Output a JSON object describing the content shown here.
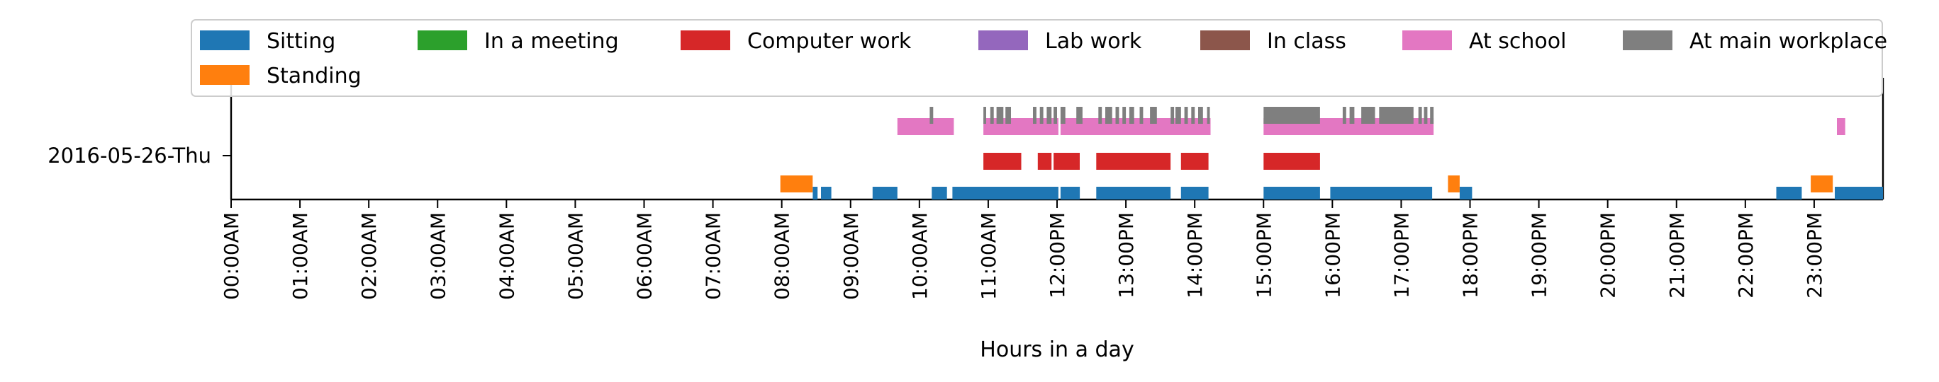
{
  "chart_data": {
    "type": "timeline",
    "xlabel": "Hours in a day",
    "xlim": [
      0,
      24
    ],
    "x_ticks": [
      {
        "value": 0,
        "label": "00:00AM"
      },
      {
        "value": 1,
        "label": "01:00AM"
      },
      {
        "value": 2,
        "label": "02:00AM"
      },
      {
        "value": 3,
        "label": "03:00AM"
      },
      {
        "value": 4,
        "label": "04:00AM"
      },
      {
        "value": 5,
        "label": "05:00AM"
      },
      {
        "value": 6,
        "label": "06:00AM"
      },
      {
        "value": 7,
        "label": "07:00AM"
      },
      {
        "value": 8,
        "label": "08:00AM"
      },
      {
        "value": 9,
        "label": "09:00AM"
      },
      {
        "value": 10,
        "label": "10:00AM"
      },
      {
        "value": 11,
        "label": "11:00AM"
      },
      {
        "value": 12,
        "label": "12:00PM"
      },
      {
        "value": 13,
        "label": "13:00PM"
      },
      {
        "value": 14,
        "label": "14:00PM"
      },
      {
        "value": 15,
        "label": "15:00PM"
      },
      {
        "value": 16,
        "label": "16:00PM"
      },
      {
        "value": 17,
        "label": "17:00PM"
      },
      {
        "value": 18,
        "label": "18:00PM"
      },
      {
        "value": 19,
        "label": "19:00PM"
      },
      {
        "value": 20,
        "label": "20:00PM"
      },
      {
        "value": 21,
        "label": "21:00PM"
      },
      {
        "value": 22,
        "label": "22:00PM"
      },
      {
        "value": 23,
        "label": "23:00PM"
      }
    ],
    "y_categories": [
      "2016-05-26-Thu"
    ],
    "legend_position": "top",
    "series": [
      {
        "name": "Sitting",
        "color": "#1f77b4",
        "intervals": [
          [
            8.45,
            8.52
          ],
          [
            8.57,
            8.72
          ],
          [
            9.32,
            9.68
          ],
          [
            10.18,
            10.4
          ],
          [
            10.48,
            12.02
          ],
          [
            12.05,
            12.33
          ],
          [
            12.57,
            13.65
          ],
          [
            13.8,
            14.2
          ],
          [
            15.0,
            15.82
          ],
          [
            15.97,
            17.45
          ],
          [
            17.85,
            18.03
          ],
          [
            22.45,
            22.82
          ],
          [
            23.3,
            24.0
          ]
        ]
      },
      {
        "name": "Standing",
        "color": "#ff7f0e",
        "intervals": [
          [
            7.98,
            8.45
          ],
          [
            17.68,
            17.85
          ],
          [
            22.95,
            23.27
          ]
        ]
      },
      {
        "name": "In a meeting",
        "color": "#2ca02c",
        "intervals": []
      },
      {
        "name": "Computer work",
        "color": "#d62728",
        "intervals": [
          [
            10.93,
            11.48
          ],
          [
            11.72,
            11.92
          ],
          [
            11.95,
            12.33
          ],
          [
            12.57,
            13.65
          ],
          [
            13.8,
            14.2
          ],
          [
            15.0,
            15.82
          ]
        ]
      },
      {
        "name": "Lab work",
        "color": "#9467bd",
        "intervals": []
      },
      {
        "name": "In class",
        "color": "#8c564b",
        "intervals": []
      },
      {
        "name": "At school",
        "color": "#e377c2",
        "intervals": [
          [
            9.68,
            10.5
          ],
          [
            10.93,
            12.02
          ],
          [
            12.05,
            14.23
          ],
          [
            15.0,
            17.47
          ],
          [
            23.33,
            23.45
          ]
        ]
      },
      {
        "name": "At main workplace",
        "color": "#7f7f7f",
        "intervals": [
          [
            10.15,
            10.2
          ],
          [
            10.93,
            10.97
          ],
          [
            11.03,
            11.08
          ],
          [
            11.12,
            11.22
          ],
          [
            11.25,
            11.33
          ],
          [
            11.65,
            11.7
          ],
          [
            11.75,
            11.8
          ],
          [
            11.85,
            11.92
          ],
          [
            11.95,
            12.0
          ],
          [
            12.05,
            12.12
          ],
          [
            12.28,
            12.32
          ],
          [
            12.3,
            12.37
          ],
          [
            12.6,
            12.65
          ],
          [
            12.7,
            12.8
          ],
          [
            12.85,
            12.9
          ],
          [
            12.95,
            13.0
          ],
          [
            13.05,
            13.12
          ],
          [
            13.2,
            13.25
          ],
          [
            13.35,
            13.45
          ],
          [
            13.65,
            13.7
          ],
          [
            13.72,
            13.8
          ],
          [
            13.85,
            13.9
          ],
          [
            13.95,
            14.0
          ],
          [
            14.05,
            14.12
          ],
          [
            14.18,
            14.22
          ],
          [
            15.0,
            15.82
          ],
          [
            16.15,
            16.2
          ],
          [
            16.25,
            16.32
          ],
          [
            16.42,
            16.62
          ],
          [
            16.68,
            17.18
          ],
          [
            17.25,
            17.3
          ],
          [
            17.33,
            17.38
          ],
          [
            17.42,
            17.47
          ]
        ]
      }
    ]
  }
}
